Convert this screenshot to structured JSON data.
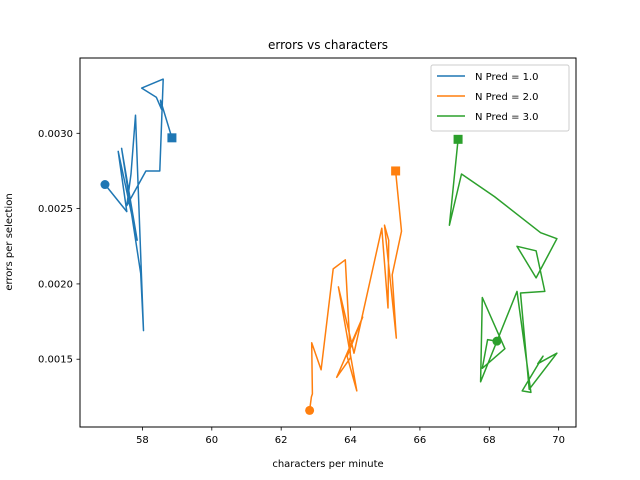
{
  "chart_data": {
    "type": "line",
    "title": "errors vs characters",
    "xlabel": "characters per minute",
    "ylabel": "errors per selection",
    "xlim": [
      56.2,
      70.5
    ],
    "ylim": [
      0.00105,
      0.0035
    ],
    "xticks": [
      58,
      60,
      62,
      64,
      66,
      68,
      70
    ],
    "xtick_labels": [
      "58",
      "60",
      "62",
      "64",
      "66",
      "68",
      "70"
    ],
    "yticks": [
      0.0015,
      0.002,
      0.0025,
      0.003
    ],
    "ytick_labels": [
      "0.0015",
      "0.0020",
      "0.0025",
      "0.0030"
    ],
    "grid": false,
    "legend_position": "top-right",
    "start_marker": "circle",
    "end_marker": "square",
    "series": [
      {
        "name": "N Pred = 1.0",
        "color": "#1f77b4",
        "points": [
          [
            56.92,
            0.00266
          ],
          [
            57.55,
            0.00248
          ],
          [
            57.3,
            0.00288
          ],
          [
            57.85,
            0.00229
          ],
          [
            57.4,
            0.0029
          ],
          [
            57.95,
            0.00207
          ],
          [
            58.03,
            0.00169
          ],
          [
            57.8,
            0.00312
          ],
          [
            57.67,
            0.00273
          ],
          [
            57.55,
            0.00252
          ],
          [
            58.1,
            0.00275
          ],
          [
            58.5,
            0.00275
          ],
          [
            58.6,
            0.00336
          ],
          [
            57.98,
            0.0033
          ],
          [
            58.4,
            0.00324
          ],
          [
            58.55,
            0.00316
          ],
          [
            58.52,
            0.00322
          ],
          [
            58.85,
            0.00297
          ]
        ]
      },
      {
        "name": "N Pred = 2.0",
        "color": "#ff7f0e",
        "points": [
          [
            62.82,
            0.00116
          ],
          [
            62.87,
            0.00125
          ],
          [
            62.9,
            0.00127
          ],
          [
            62.88,
            0.00161
          ],
          [
            63.15,
            0.00143
          ],
          [
            63.5,
            0.0021
          ],
          [
            63.85,
            0.00216
          ],
          [
            64.0,
            0.00151
          ],
          [
            63.6,
            0.00138
          ],
          [
            64.35,
            0.00178
          ],
          [
            63.9,
            0.00152
          ],
          [
            64.18,
            0.00129
          ],
          [
            63.65,
            0.00198
          ],
          [
            64.1,
            0.00154
          ],
          [
            64.9,
            0.00237
          ],
          [
            65.08,
            0.00184
          ],
          [
            65.1,
            0.00229
          ],
          [
            64.98,
            0.00239
          ],
          [
            65.32,
            0.00164
          ],
          [
            65.2,
            0.00206
          ],
          [
            65.47,
            0.00235
          ],
          [
            65.3,
            0.00275
          ]
        ]
      },
      {
        "name": "N Pred = 3.0",
        "color": "#2ca02c",
        "points": [
          [
            68.22,
            0.00162
          ],
          [
            67.95,
            0.00163
          ],
          [
            67.8,
            0.00144
          ],
          [
            68.45,
            0.00157
          ],
          [
            67.8,
            0.00191
          ],
          [
            67.75,
            0.00135
          ],
          [
            68.8,
            0.00195
          ],
          [
            69.2,
            0.00128
          ],
          [
            68.95,
            0.00129
          ],
          [
            69.55,
            0.00152
          ],
          [
            69.4,
            0.00147
          ],
          [
            69.95,
            0.00154
          ],
          [
            69.15,
            0.0013
          ],
          [
            68.9,
            0.00194
          ],
          [
            69.6,
            0.00195
          ],
          [
            69.35,
            0.00222
          ],
          [
            68.8,
            0.00225
          ],
          [
            69.35,
            0.00204
          ],
          [
            69.95,
            0.0023
          ],
          [
            69.48,
            0.00234
          ],
          [
            68.15,
            0.00258
          ],
          [
            67.2,
            0.00273
          ],
          [
            66.85,
            0.00239
          ],
          [
            67.1,
            0.00296
          ]
        ]
      }
    ]
  }
}
